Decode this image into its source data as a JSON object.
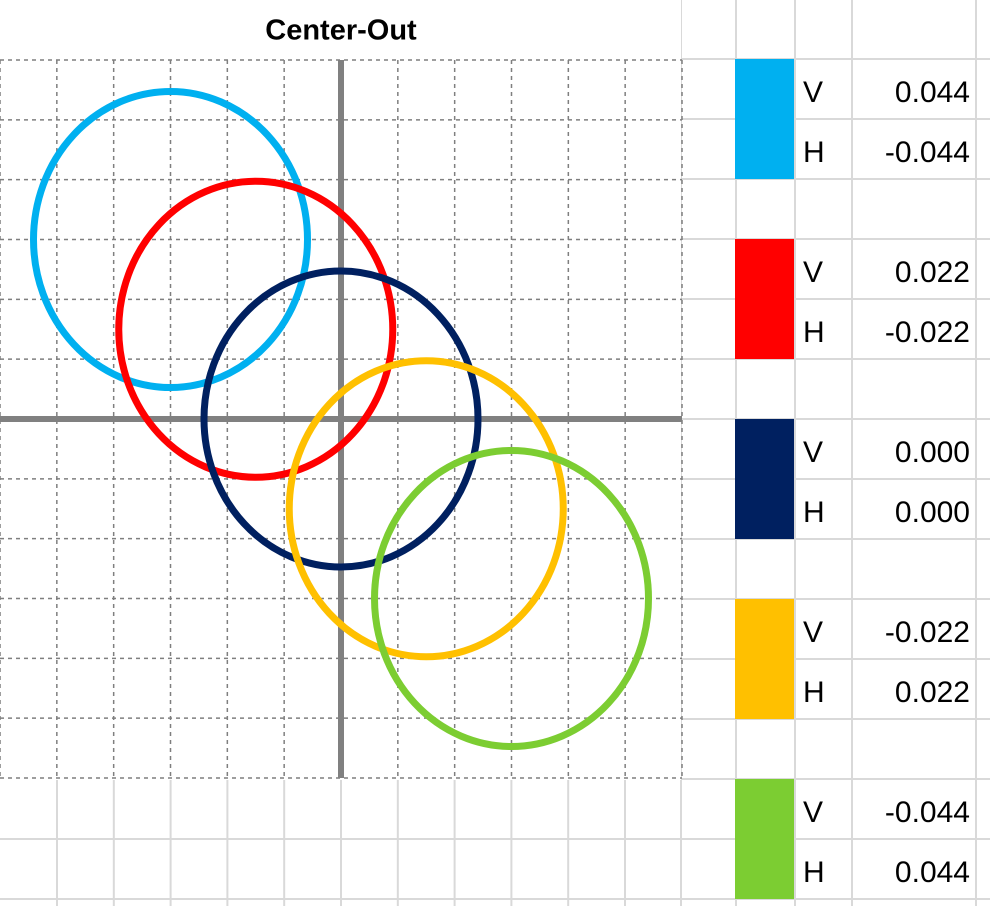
{
  "chart_data": {
    "type": "circles",
    "title": "Center-Out",
    "xlim": [
      -0.088,
      0.088
    ],
    "ylim": [
      -0.088,
      0.088
    ],
    "grid": true,
    "row_labels": [
      "V",
      "H"
    ],
    "series": [
      {
        "color": "#00b0f0",
        "values": [
          0.044
        ],
        "x": [
          -0.044
        ]
      },
      {
        "color": "#ff0000",
        "values": [
          0.022
        ],
        "x": [
          -0.022
        ]
      },
      {
        "color": "#002060",
        "values": [
          0
        ],
        "value_labels": [
          "0.000"
        ],
        "x": [
          0
        ],
        "x_labels": [
          "0.000"
        ]
      },
      {
        "color": "#ffc000",
        "values": [
          -0.022
        ],
        "x": [
          0.022
        ]
      },
      {
        "color": "#7ccd32",
        "values": [
          -0.044
        ],
        "x": [
          0.044
        ]
      }
    ]
  }
}
